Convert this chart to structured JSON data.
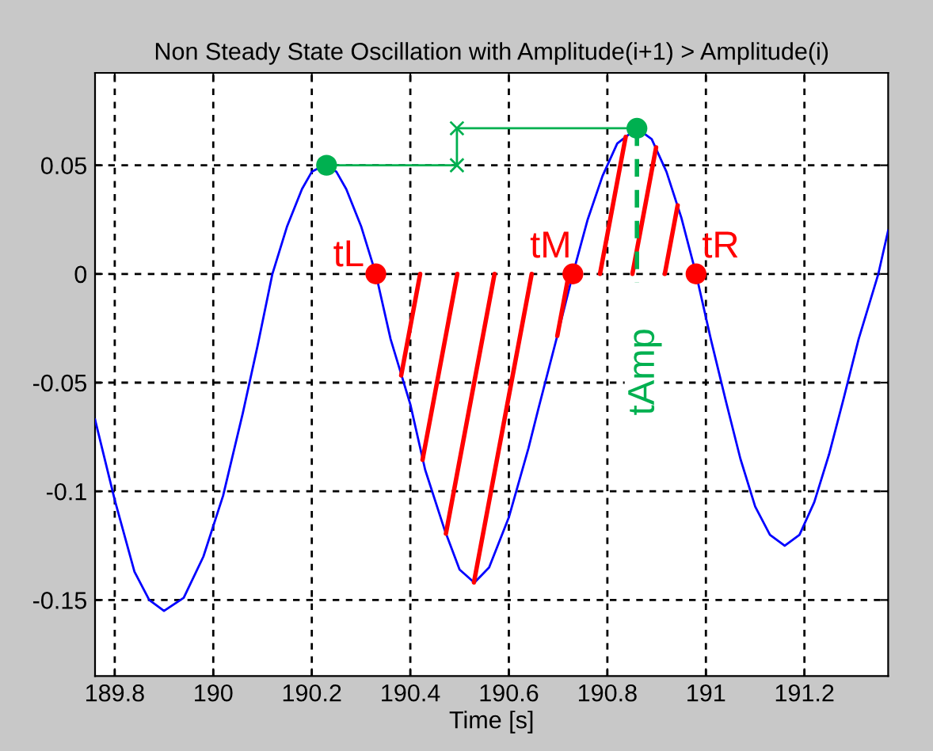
{
  "chart_data": {
    "type": "line",
    "title": "Non Steady State Oscillation with Amplitude(i+1) > Amplitude(i)",
    "xlabel": "Time [s]",
    "xlim": [
      189.76,
      191.37
    ],
    "ylim": [
      -0.185,
      0.0925
    ],
    "xticks": [
      189.8,
      190,
      190.2,
      190.4,
      190.6,
      190.8,
      191,
      191.2
    ],
    "yticks": [
      -0.15,
      -0.1,
      -0.05,
      0,
      0.05
    ],
    "grid": true,
    "series": [
      {
        "color": "#0000ff",
        "marker": "none",
        "x": [
          189.76,
          189.8,
          189.84,
          189.87,
          189.9,
          189.94,
          189.98,
          190.02,
          190.06,
          190.09,
          190.12,
          190.15,
          190.18,
          190.2,
          190.225,
          190.25,
          190.27,
          190.3,
          190.33,
          190.36,
          190.4,
          190.43,
          190.47,
          190.5,
          190.53,
          190.56,
          190.6,
          190.64,
          190.66,
          190.7,
          190.73,
          190.76,
          190.79,
          190.82,
          190.86,
          190.89,
          190.92,
          190.95,
          190.98,
          191.01,
          191.04,
          191.07,
          191.1,
          191.13,
          191.16,
          191.19,
          191.22,
          191.25,
          191.28,
          191.31,
          191.35,
          191.37
        ],
        "values": [
          -0.067,
          -0.104,
          -0.137,
          -0.15,
          -0.155,
          -0.149,
          -0.13,
          -0.102,
          -0.064,
          -0.033,
          0.0,
          0.022,
          0.039,
          0.047,
          0.05,
          0.047,
          0.039,
          0.022,
          0.0,
          -0.03,
          -0.06,
          -0.09,
          -0.118,
          -0.136,
          -0.142,
          -0.135,
          -0.112,
          -0.08,
          -0.062,
          -0.027,
          0.0,
          0.025,
          0.045,
          0.06,
          0.067,
          0.062,
          0.047,
          0.026,
          0.0,
          -0.03,
          -0.058,
          -0.085,
          -0.107,
          -0.12,
          -0.125,
          -0.12,
          -0.105,
          -0.083,
          -0.057,
          -0.03,
          0.0,
          0.02
        ]
      },
      {
        "type": "scatter",
        "color": "#00b050",
        "marker": "circle",
        "x": [
          190.23,
          190.86
        ],
        "values": [
          0.05,
          0.067
        ]
      },
      {
        "type": "scatter",
        "color": "#ff0000",
        "marker": "circle",
        "x": [
          190.33,
          190.73,
          190.98
        ],
        "values": [
          0,
          0,
          0
        ]
      }
    ],
    "annotations": [
      {
        "text": "tL",
        "x": 190.33,
        "y": 0
      },
      {
        "text": "tM",
        "x": 190.73,
        "y": 0
      },
      {
        "text": "tR",
        "x": 190.98,
        "y": 0
      },
      {
        "text": "tAmp",
        "x": 190.86,
        "y": 0.067
      }
    ]
  }
}
